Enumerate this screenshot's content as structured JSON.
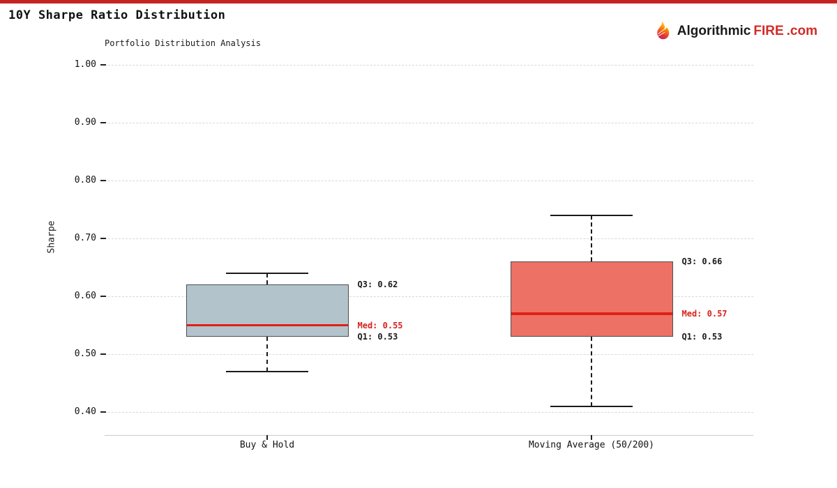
{
  "header": {
    "title": "10Y Sharpe Ratio Distribution",
    "top_bar_color": "#c52420",
    "logo": {
      "text_dark": "Algorithmic",
      "text_red": "FIRE",
      "text_suffix": ".com"
    }
  },
  "chart_data": {
    "type": "boxplot",
    "title": "Portfolio Distribution Analysis",
    "ylabel": "Sharpe",
    "ylim": [
      0.37,
      1.02
    ],
    "yticks": [
      "1.00",
      "0.90",
      "0.80",
      "0.70",
      "0.60",
      "0.50",
      "0.40"
    ],
    "grid": "horizontal-dashed",
    "colors": {
      "median_line": "#e02016",
      "median_label": "#d7231d",
      "box_border": "#4d4d4d",
      "whisker": "#1a1a1a",
      "gridline": "#d8d8d8"
    },
    "series": [
      {
        "label": "Buy & Hold",
        "whisker_high": 0.64,
        "q3": 0.62,
        "median": 0.55,
        "q1": 0.53,
        "whisker_low": 0.47,
        "box_color": "#b3c3cb",
        "annotations": {
          "q3": "Q3: 0.62",
          "med": "Med: 0.55",
          "q1": "Q1: 0.53"
        }
      },
      {
        "label": "Moving Average (50/200)",
        "whisker_high": 0.74,
        "q3": 0.66,
        "median": 0.57,
        "q1": 0.53,
        "whisker_low": 0.41,
        "box_color": "#ed7165",
        "annotations": {
          "q3": "Q3: 0.66",
          "med": "Med: 0.57",
          "q1": "Q1: 0.53"
        }
      }
    ]
  }
}
